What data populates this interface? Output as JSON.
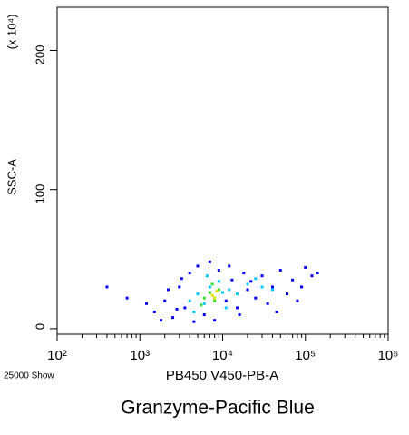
{
  "chart_data": {
    "type": "scatter",
    "y_label": "SSC-A",
    "y_multiplier": "(x 10⁴)",
    "x_label": "PB450 V450-PB-A",
    "event_count": "25000 Show",
    "title": "Granzyme-Pacific Blue",
    "xscale": "log",
    "xlim": [
      100,
      1000000
    ],
    "xticks": [
      {
        "value": 100,
        "label": "10²"
      },
      {
        "value": 1000,
        "label": "10³"
      },
      {
        "value": 10000,
        "label": "10⁴"
      },
      {
        "value": 100000,
        "label": "10⁵"
      },
      {
        "value": 1000000,
        "label": "10⁶"
      }
    ],
    "ylim": [
      -4,
      231
    ],
    "yticks": [
      0,
      100,
      200
    ],
    "series": [
      {
        "color": "#0000ff",
        "x": [
          1500,
          2000,
          2500,
          3000,
          3500,
          4000,
          4500,
          5000,
          6000,
          7000,
          8000,
          9000,
          11000,
          13000,
          15000,
          18000,
          20000,
          25000,
          30000,
          35000,
          40000,
          50000,
          60000,
          70000,
          90000,
          120000,
          140000,
          1200,
          2200,
          2800,
          3200,
          1800,
          400,
          700,
          12000,
          16000,
          22000,
          45000,
          80000,
          100000
        ],
        "y": [
          12,
          20,
          8,
          30,
          15,
          40,
          5,
          45,
          10,
          48,
          6,
          42,
          20,
          35,
          15,
          40,
          28,
          22,
          38,
          18,
          30,
          42,
          25,
          35,
          30,
          38,
          40,
          18,
          28,
          14,
          36,
          6,
          30,
          22,
          45,
          10,
          34,
          12,
          20,
          44
        ]
      },
      {
        "color": "#00c8ff",
        "x": [
          4000,
          5000,
          6000,
          7000,
          8000,
          9000,
          10000,
          12000,
          15000,
          20000,
          30000,
          4500,
          6500,
          11000,
          25000,
          40000
        ],
        "y": [
          20,
          25,
          18,
          30,
          22,
          34,
          26,
          28,
          25,
          32,
          30,
          12,
          38,
          15,
          36,
          28
        ]
      },
      {
        "color": "#30e030",
        "x": [
          6000,
          7000,
          8000,
          9000,
          7500,
          5500
        ],
        "y": [
          22,
          26,
          20,
          28,
          32,
          17
        ]
      },
      {
        "color": "#f0e000",
        "x": [
          7500,
          8500,
          8000
        ],
        "y": [
          24,
          27,
          22
        ]
      }
    ]
  }
}
